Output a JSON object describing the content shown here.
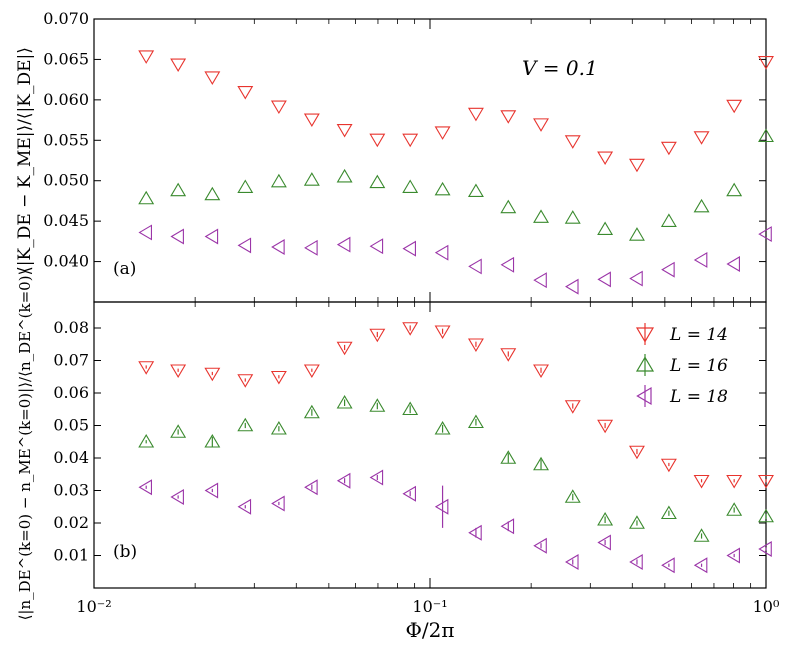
{
  "chart_data": [
    {
      "panel_label": "(a)",
      "type": "scatter",
      "ylabel": "⟨|K_DE − K_ME|⟩/⟨|K_DE|⟩",
      "annotation": "V = 0.1",
      "x_scale": "log",
      "xlim": [
        0.01,
        1
      ],
      "ylim": [
        0.035,
        0.07
      ],
      "yticks": [
        "0.040",
        "0.045",
        "0.050",
        "0.055",
        "0.060",
        "0.065",
        "0.070"
      ],
      "grid": false,
      "x": [
        0.0143,
        0.0178,
        0.0225,
        0.0282,
        0.0355,
        0.0445,
        0.0557,
        0.0697,
        0.0873,
        0.109,
        0.137,
        0.171,
        0.214,
        0.266,
        0.332,
        0.413,
        0.514,
        0.643,
        0.804,
        1.0
      ],
      "series": [
        {
          "name": "L = 14",
          "marker": "triangle-down",
          "color": "#e8342e",
          "values": [
            0.0654,
            0.0644,
            0.0628,
            0.061,
            0.0592,
            0.0576,
            0.0563,
            0.0551,
            0.0551,
            0.056,
            0.0583,
            0.058,
            0.057,
            0.0549,
            0.0529,
            0.052,
            0.0541,
            0.0554,
            0.0593,
            0.0647
          ]
        },
        {
          "name": "L = 16",
          "marker": "triangle-up",
          "color": "#3a8a2e",
          "values": [
            0.0478,
            0.0488,
            0.0483,
            0.0492,
            0.0499,
            0.0501,
            0.0505,
            0.0498,
            0.0492,
            0.0489,
            0.0487,
            0.0467,
            0.0455,
            0.0454,
            0.044,
            0.0433,
            0.045,
            0.0468,
            0.0488,
            0.0555
          ]
        },
        {
          "name": "L = 18",
          "marker": "triangle-left",
          "color": "#9b35a8",
          "values": [
            0.0436,
            0.0431,
            0.0431,
            0.042,
            0.0418,
            0.0417,
            0.0421,
            0.0419,
            0.0416,
            0.0411,
            0.0394,
            0.0396,
            0.0377,
            0.0369,
            0.0378,
            0.0379,
            0.039,
            0.0402,
            0.0397,
            0.0434
          ]
        }
      ]
    },
    {
      "panel_label": "(b)",
      "type": "scatter",
      "ylabel": "⟨|n_DE^(k=0) − n_ME^(k=0)|⟩/⟨n_DE^(k=0)⟩",
      "xlabel": "Φ/2π",
      "x_scale": "log",
      "xlim": [
        0.01,
        1
      ],
      "xticks": [
        "10⁻²",
        "10⁻¹",
        "10⁰"
      ],
      "ylim": [
        0.0,
        0.088
      ],
      "yticks": [
        "0.01",
        "0.02",
        "0.03",
        "0.04",
        "0.05",
        "0.06",
        "0.07",
        "0.08"
      ],
      "grid": false,
      "legend_position": "top-right",
      "error_bars": true,
      "x": [
        0.0143,
        0.0178,
        0.0225,
        0.0282,
        0.0355,
        0.0445,
        0.0557,
        0.0697,
        0.0873,
        0.109,
        0.137,
        0.171,
        0.214,
        0.266,
        0.332,
        0.413,
        0.514,
        0.643,
        0.804,
        1.0
      ],
      "series": [
        {
          "name": "L = 14",
          "marker": "triangle-down",
          "color": "#e8342e",
          "values": [
            0.068,
            0.067,
            0.066,
            0.064,
            0.065,
            0.067,
            0.074,
            0.078,
            0.08,
            0.079,
            0.075,
            0.072,
            0.067,
            0.056,
            0.05,
            0.042,
            0.038,
            0.033,
            0.033,
            0.033
          ],
          "errors": [
            0.0005,
            0.0005,
            0.0005,
            0.0005,
            0.0005,
            0.0005,
            0.0008,
            0.0008,
            0.0008,
            0.0008,
            0.0008,
            0.0008,
            0.0008,
            0.0008,
            0.0008,
            0.0008,
            0.0005,
            0.0005,
            0.0005,
            0.0005
          ]
        },
        {
          "name": "L = 16",
          "marker": "triangle-up",
          "color": "#3a8a2e",
          "values": [
            0.045,
            0.048,
            0.045,
            0.05,
            0.049,
            0.054,
            0.057,
            0.056,
            0.055,
            0.049,
            0.051,
            0.04,
            0.038,
            0.028,
            0.021,
            0.02,
            0.023,
            0.016,
            0.024,
            0.022
          ],
          "errors": [
            0.0005,
            0.0008,
            0.0015,
            0.0008,
            0.0008,
            0.001,
            0.001,
            0.001,
            0.0012,
            0.0012,
            0.001,
            0.0015,
            0.0015,
            0.001,
            0.001,
            0.0008,
            0.0008,
            0.0008,
            0.0008,
            0.0008
          ]
        },
        {
          "name": "L = 18",
          "marker": "triangle-left",
          "color": "#9b35a8",
          "values": [
            0.031,
            0.028,
            0.03,
            0.025,
            0.026,
            0.031,
            0.033,
            0.034,
            0.029,
            0.025,
            0.017,
            0.019,
            0.013,
            0.008,
            0.014,
            0.008,
            0.007,
            0.007,
            0.01,
            0.012
          ],
          "errors": [
            0.0005,
            0.0005,
            0.0005,
            0.0005,
            0.0005,
            0.0008,
            0.0008,
            0.0008,
            0.0008,
            0.0065,
            0.0015,
            0.0015,
            0.0008,
            0.0008,
            0.0008,
            0.0008,
            0.0005,
            0.0005,
            0.0005,
            0.0005
          ]
        }
      ]
    }
  ]
}
